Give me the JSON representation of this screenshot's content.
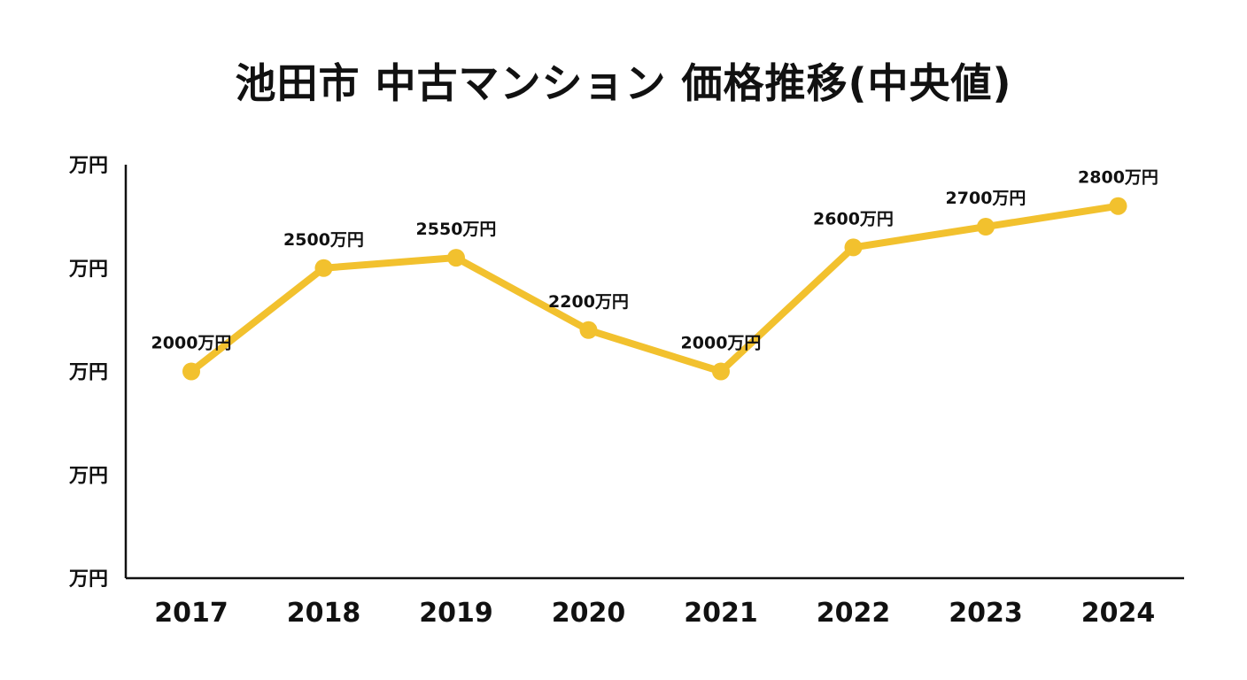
{
  "chart_data": {
    "type": "line",
    "title": "池田市 中古マンション 価格推移(中央値)",
    "xlabel": "",
    "ylabel": "",
    "categories": [
      "2017",
      "2018",
      "2019",
      "2020",
      "2021",
      "2022",
      "2023",
      "2024"
    ],
    "series": [
      {
        "values": [
          2000,
          2500,
          2550,
          2200,
          2000,
          2600,
          2700,
          2800
        ]
      }
    ],
    "data_labels": [
      "2000万円",
      "2500万円",
      "2550万円",
      "2200万円",
      "2000万円",
      "2600万円",
      "2700万円",
      "2800万円"
    ],
    "y_tick_labels": [
      "万円",
      "万円",
      "万円",
      "万円",
      "万円"
    ],
    "ylim": [
      1000,
      3000
    ],
    "y_ticks": [
      3000,
      2500,
      2000,
      1500,
      1000
    ],
    "grid": false,
    "colors": {
      "line": "#F2C12E",
      "axis": "#111111",
      "text": "#111111"
    }
  }
}
